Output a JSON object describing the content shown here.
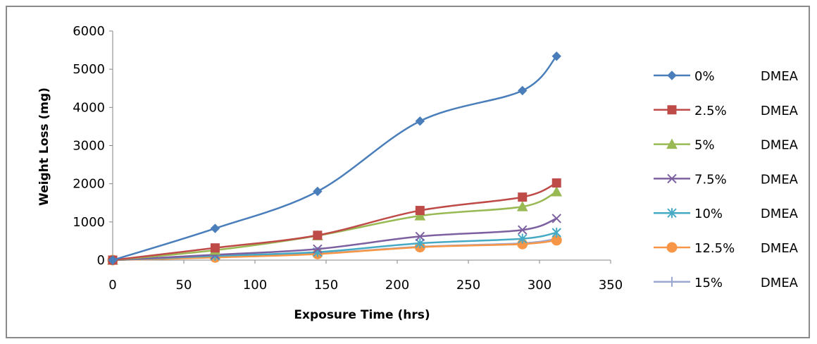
{
  "chart_data": {
    "type": "line",
    "title": "",
    "xlabel": "Exposure Time (hrs)",
    "ylabel": "Weight Loss (mg)",
    "xlim": [
      0,
      350
    ],
    "ylim": [
      0,
      6000
    ],
    "x_ticks": [
      "0",
      "50",
      "100",
      "150",
      "200",
      "250",
      "300",
      "350"
    ],
    "y_ticks": [
      "0",
      "1000",
      "2000",
      "3000",
      "4000",
      "5000",
      "6000"
    ],
    "grid": false,
    "legend_position": "right",
    "x": [
      0,
      72,
      144,
      216,
      288,
      312
    ],
    "series": [
      {
        "name": "0%",
        "suffix": "DMEA",
        "color": "#4a7ebb",
        "marker": "diamond",
        "values": [
          0,
          830,
          1800,
          3640,
          4440,
          5340
        ]
      },
      {
        "name": "2.5%",
        "suffix": "DMEA",
        "color": "#be4b48",
        "marker": "square",
        "values": [
          0,
          320,
          650,
          1300,
          1650,
          2020
        ]
      },
      {
        "name": "5%",
        "suffix": "DMEA",
        "color": "#98b954",
        "marker": "triangle",
        "values": [
          0,
          260,
          640,
          1160,
          1400,
          1790
        ]
      },
      {
        "name": "7.5%",
        "suffix": "DMEA",
        "color": "#7d60a0",
        "marker": "x",
        "values": [
          0,
          140,
          290,
          620,
          790,
          1090
        ]
      },
      {
        "name": "10%",
        "suffix": "DMEA",
        "color": "#46aac5",
        "marker": "asterisk",
        "values": [
          0,
          110,
          210,
          440,
          560,
          720
        ]
      },
      {
        "name": "12.5%",
        "suffix": "DMEA",
        "color": "#f79646",
        "marker": "circle",
        "values": [
          0,
          70,
          160,
          340,
          420,
          520
        ]
      },
      {
        "name": "15%",
        "suffix": "DMEA",
        "color": "#9ba7d0",
        "marker": "plus",
        "values": [
          0,
          90,
          170,
          350,
          440,
          560
        ]
      }
    ]
  }
}
